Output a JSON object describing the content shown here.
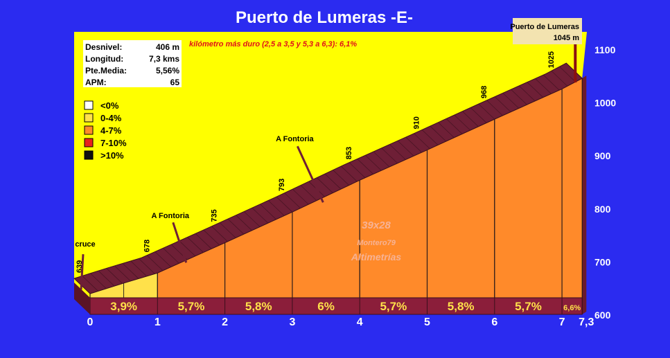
{
  "colors": {
    "background": "#2b2bf0",
    "sky": "#ffff00",
    "slope_face": "#ff8a2a",
    "ridge": "#6e1f36",
    "base": "#8b1e3a",
    "grade_text": "#ffe14a",
    "legend_white": "#ffffff",
    "legend_light": "#ffe14a",
    "legend_orange": "#ff8a2a",
    "legend_red": "#e8221c",
    "legend_black": "#111111"
  },
  "chart_data": {
    "type": "area",
    "title": "Puerto de Lumeras -E-",
    "subtitle": "kilómetro más duro (2,5 a 3,5 y  5,3 a 6,3):   6,1%",
    "x_ticks": [
      "0",
      "1",
      "2",
      "3",
      "4",
      "5",
      "6",
      "7",
      "7,3"
    ],
    "x_tick_values": [
      0,
      1,
      2,
      3,
      4,
      5,
      6,
      7,
      7.3
    ],
    "y_ticks": [
      "600",
      "700",
      "800",
      "900",
      "1000",
      "1100"
    ],
    "y_tick_values": [
      600,
      700,
      800,
      900,
      1000,
      1100
    ],
    "ylim": [
      600,
      1100
    ],
    "xlim": [
      0,
      7.3
    ],
    "profile": [
      {
        "km": 0,
        "alt": 639,
        "label": "639"
      },
      {
        "km": 0.5,
        "alt": 659,
        "label": ""
      },
      {
        "km": 1,
        "alt": 678,
        "label": "678"
      },
      {
        "km": 2,
        "alt": 735,
        "label": "735"
      },
      {
        "km": 3,
        "alt": 793,
        "label": "793"
      },
      {
        "km": 4,
        "alt": 853,
        "label": "853"
      },
      {
        "km": 5,
        "alt": 910,
        "label": "910"
      },
      {
        "km": 6,
        "alt": 968,
        "label": "968"
      },
      {
        "km": 7,
        "alt": 1025,
        "label": "1025"
      },
      {
        "km": 7.3,
        "alt": 1045,
        "label": ""
      }
    ],
    "segments": [
      {
        "from": 0,
        "to": 1,
        "grade": "3,9%",
        "category": "0-4%"
      },
      {
        "from": 1,
        "to": 2,
        "grade": "5,7%",
        "category": "4-7%"
      },
      {
        "from": 2,
        "to": 3,
        "grade": "5,8%",
        "category": "4-7%"
      },
      {
        "from": 3,
        "to": 4,
        "grade": "6%",
        "category": "4-7%"
      },
      {
        "from": 4,
        "to": 5,
        "grade": "5,7%",
        "category": "4-7%"
      },
      {
        "from": 5,
        "to": 6,
        "grade": "5,8%",
        "category": "4-7%"
      },
      {
        "from": 6,
        "to": 7,
        "grade": "5,7%",
        "category": "4-7%"
      },
      {
        "from": 7,
        "to": 7.3,
        "grade": "6,6%",
        "category": "4-7%"
      }
    ],
    "annotations": [
      {
        "text": "cruce",
        "km": 0,
        "alt": 639
      },
      {
        "text": "A Fontoria",
        "km": 1.2,
        "alt": 695
      },
      {
        "text": "A Fontoria",
        "km": 3.2,
        "alt": 806
      }
    ],
    "summit": {
      "name": "Puerto de Lumeras",
      "alt_label": "1045 m",
      "km": 7.3,
      "alt": 1045
    },
    "stats": [
      {
        "label": "Desnivel:",
        "value": "406 m"
      },
      {
        "label": "Longitud:",
        "value": "7,3 kms"
      },
      {
        "label": "Pte.Media:",
        "value": "5,56%"
      },
      {
        "label": "APM:",
        "value": "65"
      }
    ],
    "legend": [
      {
        "label": "<0%",
        "color": "#ffffff"
      },
      {
        "label": "0-4%",
        "color": "#ffe14a"
      },
      {
        "label": "4-7%",
        "color": "#ff8a2a"
      },
      {
        "label": "7-10%",
        "color": "#e8221c"
      },
      {
        "label": ">10%",
        "color": "#111111"
      }
    ],
    "watermark": [
      "39x28",
      "Montero79",
      "Altimetrías"
    ]
  }
}
